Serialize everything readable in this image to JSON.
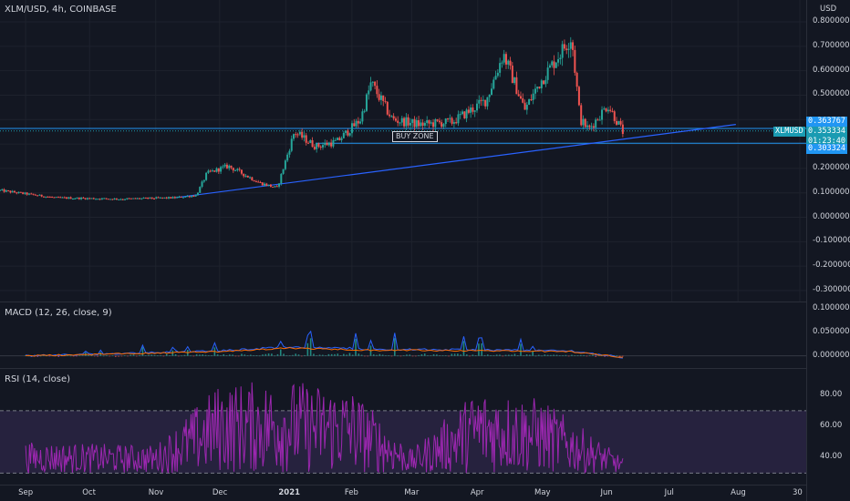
{
  "header": {
    "symbol_label": "XLM/USD, 4h, COINBASE",
    "currency": "USD"
  },
  "price_axis": {
    "labels": [
      "0.800000",
      "0.700000",
      "0.600000",
      "0.500000",
      "0.200000",
      "0.100000",
      "0.000000",
      "-0.100000",
      "-0.200000",
      "-0.300000"
    ]
  },
  "price_tags": {
    "upper": "0.363767",
    "last": "0.353334",
    "countdown": "01:23:40",
    "lower": "0.303324",
    "symbol": "XLMUSD"
  },
  "annotation": {
    "buy_zone": "BUY ZONE"
  },
  "macd": {
    "label": "MACD (12, 26, close, 9)",
    "axis": [
      "0.100000",
      "0.050000",
      "0.000000"
    ]
  },
  "rsi": {
    "label": "RSI (14, close)",
    "axis": [
      "80.00",
      "60.00",
      "40.00"
    ]
  },
  "time_axis": {
    "labels": [
      "Sep",
      "Oct",
      "Nov",
      "Dec",
      "2021",
      "Feb",
      "Mar",
      "Apr",
      "May",
      "Jun",
      "Jul",
      "Aug",
      "30"
    ]
  },
  "colors": {
    "background": "#131722",
    "bull": "#26a69a",
    "bear": "#ef5350",
    "trendline": "#2962ff",
    "hline": "#2196f3",
    "rsi": "#9c27b0",
    "macd_line": "#2962ff",
    "signal_line": "#ff6d00",
    "tag": "#1a9bb2"
  },
  "chart_data": [
    {
      "type": "line",
      "title": "XLM/USD, 4h, COINBASE",
      "ylim": [
        -0.3,
        0.8
      ],
      "series": [
        {
          "name": "XLM/USD",
          "x": [
            "2020-08-20",
            "2020-09-15",
            "2020-10-15",
            "2020-11-10",
            "2020-11-20",
            "2020-11-25",
            "2020-12-05",
            "2020-12-20",
            "2020-12-28",
            "2021-01-05",
            "2021-01-15",
            "2021-01-25",
            "2021-02-05",
            "2021-02-10",
            "2021-02-20",
            "2021-03-05",
            "2021-03-20",
            "2021-04-05",
            "2021-04-13",
            "2021-04-23",
            "2021-04-30",
            "2021-05-15",
            "2021-05-19",
            "2021-05-23",
            "2021-06-01",
            "2021-06-08"
          ],
          "values": [
            0.11,
            0.08,
            0.075,
            0.08,
            0.09,
            0.18,
            0.21,
            0.14,
            0.12,
            0.35,
            0.29,
            0.31,
            0.4,
            0.55,
            0.4,
            0.38,
            0.39,
            0.48,
            0.67,
            0.44,
            0.55,
            0.74,
            0.4,
            0.36,
            0.46,
            0.35
          ]
        }
      ],
      "lines": {
        "upper_level": 0.363767,
        "lower_level": 0.303324,
        "trendline_start": [
          "2020-11-10",
          0.08
        ],
        "trendline_end": [
          "2021-07-31",
          0.38
        ]
      }
    },
    {
      "type": "line",
      "title": "MACD (12, 26, close, 9)",
      "ylim": [
        -0.02,
        0.1
      ],
      "series": [
        {
          "name": "MACD",
          "x": [
            "2020-09",
            "2020-12-01",
            "2021-01-02",
            "2021-02-12",
            "2021-04-15",
            "2021-05-15",
            "2021-06-08"
          ],
          "values": [
            0.0,
            0.03,
            0.055,
            0.04,
            0.035,
            0.03,
            -0.01
          ]
        }
      ]
    },
    {
      "type": "line",
      "title": "RSI (14, close)",
      "ylim": [
        25,
        95
      ],
      "bands": [
        30,
        70
      ],
      "series": [
        {
          "name": "RSI",
          "x": [
            "2020-09",
            "2020-11",
            "2020-12-01",
            "2021-01-02",
            "2021-02",
            "2021-03",
            "2021-04",
            "2021-05",
            "2021-06-08"
          ],
          "values": [
            50,
            48,
            88,
            90,
            85,
            45,
            85,
            78,
            40
          ]
        }
      ]
    }
  ]
}
